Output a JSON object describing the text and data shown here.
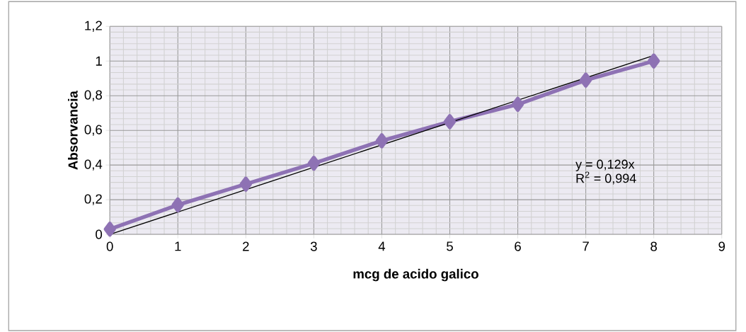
{
  "chart_data": {
    "type": "line",
    "xlabel": "mcg de acido galico",
    "ylabel": "Absorvancia",
    "x": [
      0,
      1,
      2,
      3,
      4,
      5,
      6,
      7,
      8
    ],
    "series": [
      {
        "color": "#8e72b4",
        "marker": "diamond",
        "values": [
          0.03,
          0.17,
          0.29,
          0.41,
          0.54,
          0.65,
          0.75,
          0.89,
          1.0
        ]
      },
      {
        "color": "#000000",
        "marker": "none",
        "x": [
          0,
          8
        ],
        "values": [
          0,
          1.032
        ]
      }
    ],
    "xlim": [
      0,
      9
    ],
    "xticks": [
      0,
      1,
      2,
      3,
      4,
      5,
      6,
      7,
      8,
      9
    ],
    "ylim": [
      0,
      1.2
    ],
    "yticks": [
      0,
      {
        "value": 0.2,
        "label": "0,2"
      },
      {
        "value": 0.4,
        "label": "0,4"
      },
      {
        "value": 0.6,
        "label": "0,6"
      },
      {
        "value": 0.8,
        "label": "0,8"
      },
      1,
      {
        "value": 1.2,
        "label": "1,2"
      }
    ],
    "annotations": [
      "y = 0,129x",
      "R$^{2}$ = 0,994"
    ],
    "grid": true
  }
}
